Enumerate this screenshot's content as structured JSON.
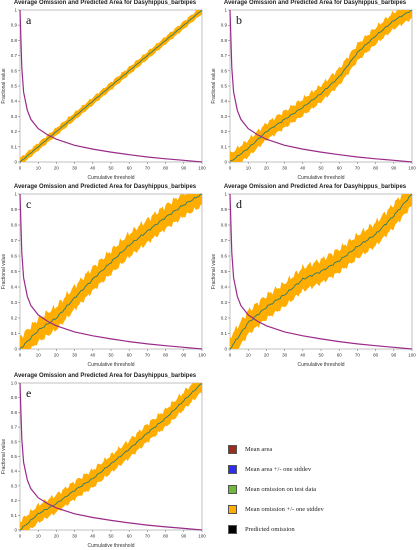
{
  "colors": {
    "mean_area": "#9b2d1f",
    "mean_area_std": "#2e2ef0",
    "mean_omission_test": "#6fba3a",
    "mean_omission_std": "#ffad00",
    "predicted_omission": "#000000",
    "area_curve": "#9a2a8a",
    "omission_line": "#2e7d6b"
  },
  "legend": {
    "items": [
      {
        "label": "Mean area",
        "color_key": "mean_area"
      },
      {
        "label": "Mean area +/- one stddev",
        "color_key": "mean_area_std"
      },
      {
        "label": "Mean omission on test data",
        "color_key": "mean_omission_test"
      },
      {
        "label": "Mean omission +/- one stddev",
        "color_key": "mean_omission_std"
      },
      {
        "label": "Predicted omission",
        "color_key": "predicted_omission"
      }
    ]
  },
  "chart_data": [
    {
      "type": "line",
      "panel_letter": "a",
      "title": "Average Omission and Predicted Area for Dasyhippus_barbipes",
      "xlabel": "Cumulative threshold",
      "ylabel": "Fractional value",
      "xlim": [
        0,
        100
      ],
      "ylim": [
        0,
        1.0
      ],
      "xticks": [
        0,
        10,
        20,
        30,
        40,
        50,
        60,
        70,
        80,
        90,
        100
      ],
      "yticks": [
        0,
        0.1,
        0.2,
        0.3,
        0.4,
        0.5,
        0.6,
        0.7,
        0.8,
        0.9,
        1.0
      ],
      "ytick_labels": [
        "0",
        "0.1",
        "0.2",
        "0.3",
        "0.4",
        "0.5",
        "0.6",
        "0.7",
        "0.8",
        "0.9",
        "1"
      ],
      "band_halfwidth": 0.025,
      "series": [
        {
          "name": "Mean omission on test data",
          "x": [
            0,
            10,
            20,
            30,
            40,
            50,
            60,
            70,
            80,
            90,
            100
          ],
          "y": [
            0,
            0.1,
            0.2,
            0.3,
            0.4,
            0.5,
            0.6,
            0.7,
            0.8,
            0.9,
            1.0
          ]
        },
        {
          "name": "Mean area",
          "x": [
            0,
            1,
            2,
            4,
            6,
            10,
            15,
            20,
            30,
            40,
            50,
            60,
            70,
            80,
            90,
            100
          ],
          "y": [
            1.0,
            0.62,
            0.46,
            0.34,
            0.28,
            0.22,
            0.18,
            0.15,
            0.11,
            0.085,
            0.065,
            0.048,
            0.033,
            0.021,
            0.011,
            0
          ]
        }
      ]
    },
    {
      "type": "line",
      "panel_letter": "b",
      "title": "Average Omission and Predicted Area for Dasyhippus_barbipes",
      "xlabel": "Cumulative threshold",
      "ylabel": "Fractional value",
      "xlim": [
        0,
        100
      ],
      "ylim": [
        0,
        1.0
      ],
      "xticks": [
        0,
        10,
        20,
        30,
        40,
        50,
        60,
        70,
        80,
        90,
        100
      ],
      "yticks": [
        0,
        0.1,
        0.2,
        0.3,
        0.4,
        0.5,
        0.6,
        0.7,
        0.8,
        0.9,
        1.0
      ],
      "ytick_labels": [
        "0",
        "0.1",
        "0.2",
        "0.3",
        "0.4",
        "0.5",
        "0.6",
        "0.7",
        "0.8",
        "0.9",
        "1"
      ],
      "band_halfwidth": 0.055,
      "series": [
        {
          "name": "Mean omission on test data",
          "x": [
            0,
            10,
            20,
            30,
            40,
            50,
            60,
            70,
            80,
            90,
            100
          ],
          "y": [
            0,
            0.09,
            0.2,
            0.28,
            0.36,
            0.45,
            0.56,
            0.72,
            0.83,
            0.93,
            1.0
          ]
        },
        {
          "name": "Mean area",
          "x": [
            0,
            1,
            2,
            4,
            6,
            10,
            15,
            20,
            30,
            40,
            50,
            60,
            70,
            80,
            90,
            100
          ],
          "y": [
            1.0,
            0.62,
            0.46,
            0.34,
            0.28,
            0.22,
            0.18,
            0.15,
            0.11,
            0.085,
            0.065,
            0.048,
            0.033,
            0.021,
            0.011,
            0
          ]
        }
      ]
    },
    {
      "type": "line",
      "panel_letter": "c",
      "title": "Average Omission and Predicted Area for Dasyhippus_barbipes",
      "xlabel": "Cumulative threshold",
      "ylabel": "Fractional value",
      "xlim": [
        0,
        100
      ],
      "ylim": [
        0,
        1.0
      ],
      "xticks": [
        0,
        10,
        20,
        30,
        40,
        50,
        60,
        70,
        80,
        90,
        100
      ],
      "yticks": [
        0,
        0.1,
        0.2,
        0.3,
        0.4,
        0.5,
        0.6,
        0.7,
        0.8,
        0.9,
        1.0
      ],
      "ytick_labels": [
        "0",
        "0.1",
        "0.2",
        "0.3",
        "0.4",
        "0.5",
        "0.6",
        "0.7",
        "0.8",
        "0.9",
        "1"
      ],
      "band_halfwidth": 0.075,
      "series": [
        {
          "name": "Mean omission on test data",
          "x": [
            0,
            10,
            20,
            30,
            40,
            50,
            60,
            70,
            80,
            90,
            100
          ],
          "y": [
            0,
            0.12,
            0.2,
            0.33,
            0.45,
            0.56,
            0.67,
            0.76,
            0.85,
            0.93,
            1.0
          ]
        },
        {
          "name": "Mean area",
          "x": [
            0,
            1,
            2,
            4,
            6,
            10,
            15,
            20,
            30,
            40,
            50,
            60,
            70,
            80,
            90,
            100
          ],
          "y": [
            1.0,
            0.62,
            0.46,
            0.34,
            0.28,
            0.22,
            0.18,
            0.15,
            0.11,
            0.085,
            0.065,
            0.048,
            0.033,
            0.021,
            0.011,
            0
          ]
        }
      ]
    },
    {
      "type": "line",
      "panel_letter": "d",
      "title": "Average Omission and Predicted Area for Dasyhippus_barbipes",
      "xlabel": "Cumulative threshold",
      "ylabel": "Fractional value",
      "xlim": [
        0,
        100
      ],
      "ylim": [
        0,
        1.0
      ],
      "xticks": [
        0,
        10,
        20,
        30,
        40,
        50,
        60,
        70,
        80,
        90,
        100
      ],
      "yticks": [
        0,
        0.1,
        0.2,
        0.3,
        0.4,
        0.5,
        0.6,
        0.7,
        0.8,
        0.9,
        1.0
      ],
      "ytick_labels": [
        "0",
        "0.1",
        "0.2",
        "0.3",
        "0.4",
        "0.5",
        "0.6",
        "0.7",
        "0.8",
        "0.9",
        "1"
      ],
      "band_halfwidth": 0.075,
      "series": [
        {
          "name": "Mean omission on test data",
          "x": [
            0,
            10,
            20,
            30,
            40,
            50,
            60,
            70,
            80,
            90,
            100
          ],
          "y": [
            0,
            0.17,
            0.27,
            0.35,
            0.45,
            0.5,
            0.57,
            0.66,
            0.74,
            0.86,
            1.0
          ]
        },
        {
          "name": "Mean area",
          "x": [
            0,
            1,
            2,
            4,
            6,
            10,
            15,
            20,
            30,
            40,
            50,
            60,
            70,
            80,
            90,
            100
          ],
          "y": [
            1.0,
            0.62,
            0.46,
            0.34,
            0.28,
            0.22,
            0.18,
            0.15,
            0.11,
            0.085,
            0.065,
            0.048,
            0.033,
            0.021,
            0.011,
            0
          ]
        }
      ]
    },
    {
      "type": "line",
      "panel_letter": "e",
      "title": "Average Omission and Predicted Area for Dasyhippus_barbipes",
      "xlabel": "Cumulative threshold",
      "ylabel": "Fractional value",
      "xlim": [
        0,
        100
      ],
      "ylim": [
        0,
        1.0
      ],
      "xticks": [
        0,
        10,
        20,
        30,
        40,
        50,
        60,
        70,
        80,
        90,
        100
      ],
      "yticks": [
        0,
        0.1,
        0.2,
        0.3,
        0.4,
        0.5,
        0.6,
        0.7,
        0.8,
        0.9,
        1.0
      ],
      "ytick_labels": [
        "0",
        "0.1",
        "0.2",
        "0.3",
        "0.4",
        "0.5",
        "0.6",
        "0.7",
        "0.8",
        "0.9",
        "1.0"
      ],
      "band_halfwidth": 0.06,
      "series": [
        {
          "name": "Mean omission on test data",
          "x": [
            0,
            10,
            20,
            30,
            40,
            50,
            60,
            70,
            80,
            90,
            100
          ],
          "y": [
            0,
            0.11,
            0.18,
            0.27,
            0.35,
            0.45,
            0.55,
            0.66,
            0.76,
            0.88,
            1.0
          ]
        },
        {
          "name": "Mean area",
          "x": [
            0,
            1,
            2,
            4,
            6,
            10,
            15,
            20,
            30,
            40,
            50,
            60,
            70,
            80,
            90,
            100
          ],
          "y": [
            1.0,
            0.62,
            0.46,
            0.34,
            0.28,
            0.22,
            0.18,
            0.15,
            0.11,
            0.085,
            0.065,
            0.048,
            0.033,
            0.021,
            0.011,
            0
          ]
        }
      ]
    }
  ]
}
